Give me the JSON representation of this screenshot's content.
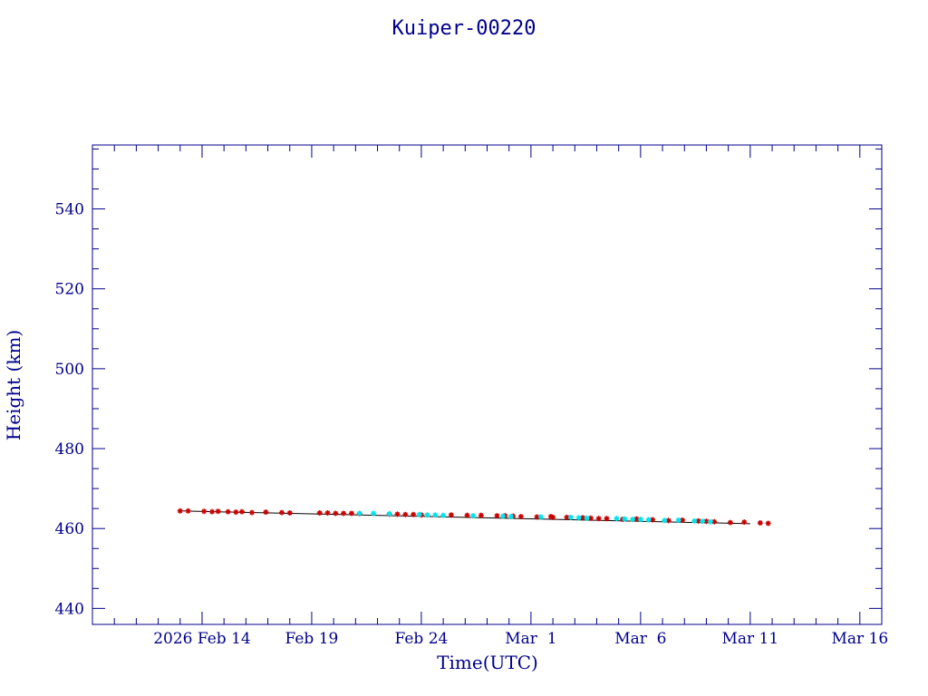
{
  "chart_data": {
    "type": "scatter",
    "title": "Kuiper-00220",
    "xlabel": "Time(UTC)",
    "ylabel": "Height (km)",
    "xlim": [
      "2026-02-09",
      "2026-03-17"
    ],
    "ylim": [
      436,
      556
    ],
    "x_ticks": [
      {
        "date": "2026-02-14",
        "label": "2026 Feb 14"
      },
      {
        "date": "2026-02-19",
        "label": "Feb 19"
      },
      {
        "date": "2026-02-24",
        "label": "Feb 24"
      },
      {
        "date": "2026-03-01",
        "label": "Mar  1"
      },
      {
        "date": "2026-03-06",
        "label": "Mar  6"
      },
      {
        "date": "2026-03-11",
        "label": "Mar 11"
      },
      {
        "date": "2026-03-16",
        "label": "Mar 16"
      }
    ],
    "y_ticks": [
      440,
      460,
      480,
      500,
      520,
      540
    ],
    "grid": false,
    "colors": {
      "axis": "#00008b",
      "series_red": "#cc0000",
      "series_cyan": "#00e5ee",
      "trend_line": "#000000"
    },
    "trend_line": {
      "x": [
        "2026-02-13",
        "2026-03-11"
      ],
      "y": [
        464.4,
        461.2
      ]
    },
    "series": [
      {
        "color": "#cc0000",
        "x": [
          "2026-02-13",
          "2026-02-13",
          "2026-02-14",
          "2026-02-14",
          "2026-02-14",
          "2026-02-15",
          "2026-02-15",
          "2026-02-15",
          "2026-02-16",
          "2026-02-16",
          "2026-02-17",
          "2026-02-18",
          "2026-02-19",
          "2026-02-19",
          "2026-02-20",
          "2026-02-20",
          "2026-02-20",
          "2026-02-21",
          "2026-02-22",
          "2026-02-22",
          "2026-02-23",
          "2026-02-23",
          "2026-02-24",
          "2026-02-25",
          "2026-02-26",
          "2026-02-26",
          "2026-02-27",
          "2026-02-27",
          "2026-02-28",
          "2026-02-28",
          "2026-03-01",
          "2026-03-01",
          "2026-03-02",
          "2026-03-02",
          "2026-03-03",
          "2026-03-03",
          "2026-03-04",
          "2026-03-04",
          "2026-03-05",
          "2026-03-05",
          "2026-03-06",
          "2026-03-07",
          "2026-03-07",
          "2026-03-08",
          "2026-03-09",
          "2026-03-09",
          "2026-03-10",
          "2026-03-10",
          "2026-03-11",
          "2026-03-11"
        ],
        "y": [
          464.4,
          464.4,
          464.3,
          464.3,
          464.2,
          464.2,
          464.2,
          464.1,
          464.1,
          464.0,
          464.0,
          463.9,
          463.9,
          463.9,
          463.8,
          463.8,
          463.8,
          463.7,
          463.6,
          463.6,
          463.5,
          463.5,
          463.4,
          463.4,
          463.3,
          463.3,
          463.2,
          463.2,
          463.1,
          463.0,
          463.0,
          462.9,
          462.8,
          462.8,
          462.7,
          462.6,
          462.5,
          462.5,
          462.4,
          462.3,
          462.2,
          462.1,
          462.0,
          461.9,
          461.8,
          461.7,
          461.6,
          461.5,
          461.4,
          461.3
        ]
      },
      {
        "color": "#00e5ee",
        "x": [
          "2026-02-21",
          "2026-02-21",
          "2026-02-22",
          "2026-02-23",
          "2026-02-24",
          "2026-02-24",
          "2026-02-25",
          "2026-02-26",
          "2026-02-27",
          "2026-02-28",
          "2026-03-01",
          "2026-03-02",
          "2026-03-03",
          "2026-03-03",
          "2026-03-04",
          "2026-03-05",
          "2026-03-05",
          "2026-03-06",
          "2026-03-06",
          "2026-03-07",
          "2026-03-07",
          "2026-03-08",
          "2026-03-08",
          "2026-03-09"
        ],
        "y": [
          463.8,
          463.8,
          463.7,
          463.5,
          463.4,
          463.4,
          463.3,
          463.2,
          463.1,
          463.0,
          462.9,
          462.8,
          462.7,
          462.6,
          462.5,
          462.4,
          462.3,
          462.3,
          462.2,
          462.1,
          462.0,
          461.9,
          461.8,
          461.7
        ]
      }
    ]
  }
}
